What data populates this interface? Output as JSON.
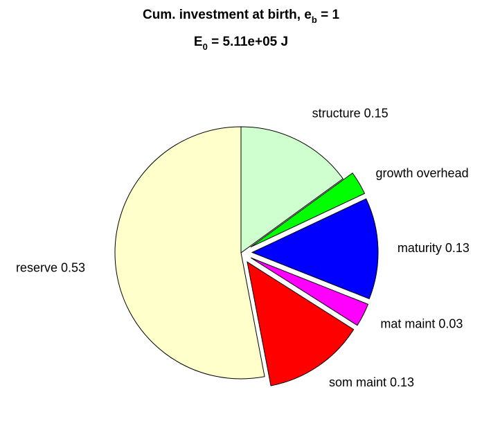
{
  "chart_data": {
    "type": "pie",
    "title": {
      "line1_prefix": "Cum. investment at birth, e",
      "line1_subscript": "b",
      "line1_suffix": " = 1",
      "line2_prefix": "E",
      "line2_subscript": "0",
      "line2_suffix": " = 5.11e+05 J"
    },
    "slices": [
      {
        "name": "structure",
        "value": 0.15,
        "label": "structure 0.15",
        "color": "#cfffcf",
        "exploded": false
      },
      {
        "name": "growth overhead",
        "value": 0.03,
        "label": "growth overhead",
        "color": "#00ff00",
        "exploded": true
      },
      {
        "name": "maturity",
        "value": 0.13,
        "label": "maturity 0.13",
        "color": "#0000ff",
        "exploded": true
      },
      {
        "name": "mat maint",
        "value": 0.03,
        "label": "mat maint 0.03",
        "color": "#ff00ff",
        "exploded": true
      },
      {
        "name": "som maint",
        "value": 0.13,
        "label": "som maint 0.13",
        "color": "#ff0000",
        "exploded": true
      },
      {
        "name": "reserve",
        "value": 0.53,
        "label": "reserve 0.53",
        "color": "#ffffcc",
        "exploded": false
      }
    ],
    "start": "top",
    "direction": "clockwise"
  }
}
